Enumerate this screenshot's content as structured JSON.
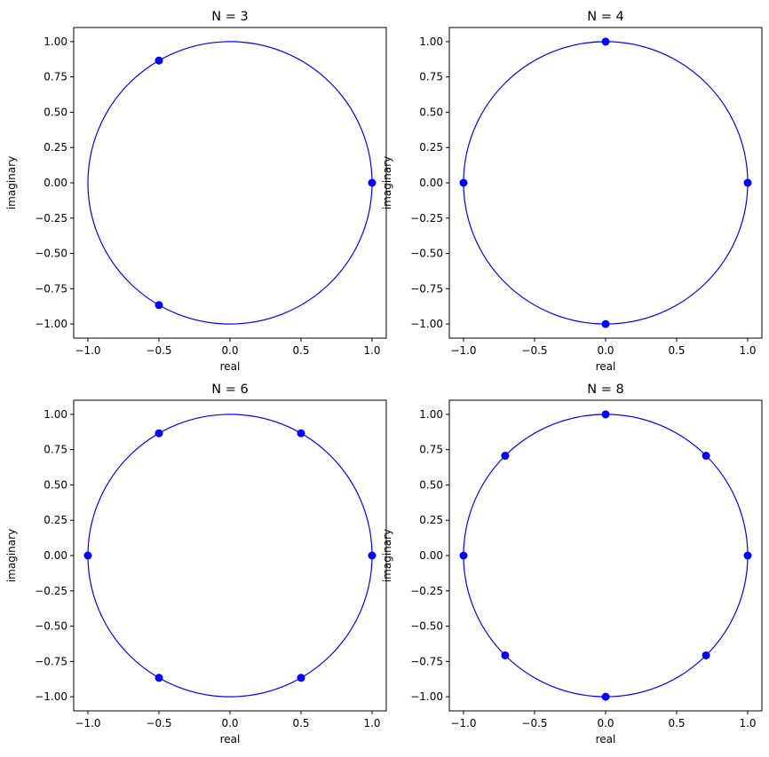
{
  "chart_data": [
    {
      "type": "scatter",
      "title": "N = 3",
      "xlabel": "real",
      "ylabel": "imaginary",
      "xlim": [
        -1.1,
        1.1
      ],
      "ylim": [
        -1.1,
        1.1
      ],
      "grid": false,
      "xticks": [
        "−1.0",
        "−0.5",
        "0.0",
        "0.5",
        "1.0"
      ],
      "yticks": [
        "−1.00",
        "−0.75",
        "−0.50",
        "−0.25",
        "0.00",
        "0.25",
        "0.50",
        "0.75",
        "1.00"
      ],
      "circle": {
        "radius": 1,
        "color": "#0000ff"
      },
      "points": [
        [
          1,
          0
        ],
        [
          -0.5,
          0.866
        ],
        [
          -0.5,
          -0.866
        ]
      ],
      "color": "#0000ff"
    },
    {
      "type": "scatter",
      "title": "N = 4",
      "xlabel": "real",
      "ylabel": "imaginary",
      "xlim": [
        -1.1,
        1.1
      ],
      "ylim": [
        -1.1,
        1.1
      ],
      "grid": false,
      "xticks": [
        "−1.0",
        "−0.5",
        "0.0",
        "0.5",
        "1.0"
      ],
      "yticks": [
        "−1.00",
        "−0.75",
        "−0.50",
        "−0.25",
        "0.00",
        "0.25",
        "0.50",
        "0.75",
        "1.00"
      ],
      "circle": {
        "radius": 1,
        "color": "#0000ff"
      },
      "points": [
        [
          1,
          0
        ],
        [
          0,
          1
        ],
        [
          -1,
          0
        ],
        [
          0,
          -1
        ]
      ],
      "color": "#0000ff"
    },
    {
      "type": "scatter",
      "title": "N = 6",
      "xlabel": "real",
      "ylabel": "imaginary",
      "xlim": [
        -1.1,
        1.1
      ],
      "ylim": [
        -1.1,
        1.1
      ],
      "grid": false,
      "xticks": [
        "−1.0",
        "−0.5",
        "0.0",
        "0.5",
        "1.0"
      ],
      "yticks": [
        "−1.00",
        "−0.75",
        "−0.50",
        "−0.25",
        "0.00",
        "0.25",
        "0.50",
        "0.75",
        "1.00"
      ],
      "circle": {
        "radius": 1,
        "color": "#0000ff"
      },
      "points": [
        [
          1,
          0
        ],
        [
          0.5,
          0.866
        ],
        [
          -0.5,
          0.866
        ],
        [
          -1,
          0
        ],
        [
          -0.5,
          -0.866
        ],
        [
          0.5,
          -0.866
        ]
      ],
      "color": "#0000ff"
    },
    {
      "type": "scatter",
      "title": "N = 8",
      "xlabel": "real",
      "ylabel": "imaginary",
      "xlim": [
        -1.1,
        1.1
      ],
      "ylim": [
        -1.1,
        1.1
      ],
      "grid": false,
      "xticks": [
        "−1.0",
        "−0.5",
        "0.0",
        "0.5",
        "1.0"
      ],
      "yticks": [
        "−1.00",
        "−0.75",
        "−0.50",
        "−0.25",
        "0.00",
        "0.25",
        "0.50",
        "0.75",
        "1.00"
      ],
      "circle": {
        "radius": 1,
        "color": "#0000ff"
      },
      "points": [
        [
          1,
          0
        ],
        [
          0.707,
          0.707
        ],
        [
          0,
          1
        ],
        [
          -0.707,
          0.707
        ],
        [
          -1,
          0
        ],
        [
          -0.707,
          -0.707
        ],
        [
          0,
          -1
        ],
        [
          0.707,
          -0.707
        ]
      ],
      "color": "#0000ff"
    }
  ]
}
